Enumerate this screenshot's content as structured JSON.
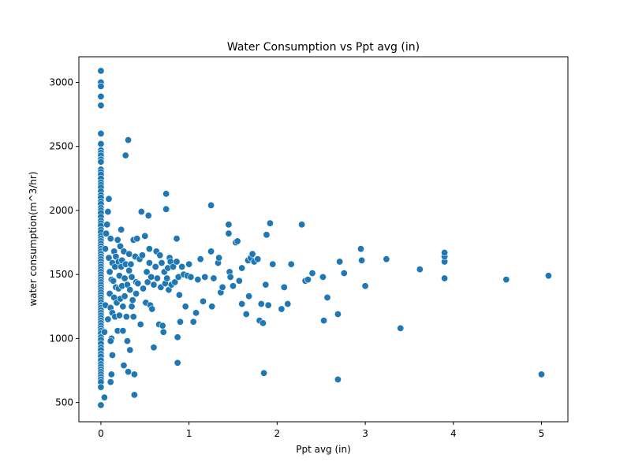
{
  "chart_data": {
    "type": "scatter",
    "title": "Water Consumption vs Ppt avg (in)",
    "xlabel": "Ppt avg (in)",
    "ylabel": "water consumption(m^3/hr)",
    "xlim": [
      -0.25,
      5.3
    ],
    "ylim": [
      350,
      3200
    ],
    "xticks": [
      0,
      1,
      2,
      3,
      4,
      5
    ],
    "xtick_labels": [
      "0",
      "1",
      "2",
      "3",
      "4",
      "5"
    ],
    "yticks": [
      500,
      1000,
      1500,
      2000,
      2500,
      3000
    ],
    "ytick_labels": [
      "500",
      "1000",
      "1500",
      "2000",
      "2500",
      "3000"
    ],
    "grid": false,
    "legend": "none",
    "marker_color": "#1f77b4",
    "series": [
      {
        "points": [
          [
            0,
            3090
          ],
          [
            0,
            3000
          ],
          [
            0,
            2970
          ],
          [
            0,
            2890
          ],
          [
            0,
            2820
          ],
          [
            0,
            2600
          ],
          [
            0,
            2520
          ],
          [
            0,
            2470
          ],
          [
            0,
            2450
          ],
          [
            0,
            2430
          ],
          [
            0,
            2400
          ],
          [
            0,
            2380
          ],
          [
            0,
            2320
          ],
          [
            0,
            2300
          ],
          [
            0,
            2280
          ],
          [
            0,
            2250
          ],
          [
            0,
            2220
          ],
          [
            0,
            2200
          ],
          [
            0,
            2180
          ],
          [
            0,
            2150
          ],
          [
            0,
            2120
          ],
          [
            0,
            2100
          ],
          [
            0,
            2070
          ],
          [
            0,
            2050
          ],
          [
            0,
            2020
          ],
          [
            0,
            2000
          ],
          [
            0,
            1980
          ],
          [
            0,
            1950
          ],
          [
            0,
            1920
          ],
          [
            0,
            1900
          ],
          [
            0,
            1880
          ],
          [
            0,
            1850
          ],
          [
            0,
            1830
          ],
          [
            0,
            1800
          ],
          [
            0,
            1780
          ],
          [
            0,
            1760
          ],
          [
            0,
            1740
          ],
          [
            0,
            1720
          ],
          [
            0,
            1700
          ],
          [
            0,
            1680
          ],
          [
            0,
            1660
          ],
          [
            0,
            1640
          ],
          [
            0,
            1620
          ],
          [
            0,
            1600
          ],
          [
            0,
            1580
          ],
          [
            0,
            1560
          ],
          [
            0,
            1540
          ],
          [
            0,
            1520
          ],
          [
            0,
            1500
          ],
          [
            0,
            1480
          ],
          [
            0,
            1460
          ],
          [
            0,
            1440
          ],
          [
            0,
            1420
          ],
          [
            0,
            1400
          ],
          [
            0,
            1380
          ],
          [
            0,
            1360
          ],
          [
            0,
            1340
          ],
          [
            0,
            1320
          ],
          [
            0,
            1300
          ],
          [
            0,
            1280
          ],
          [
            0,
            1260
          ],
          [
            0,
            1240
          ],
          [
            0,
            1220
          ],
          [
            0,
            1200
          ],
          [
            0,
            1180
          ],
          [
            0,
            1160
          ],
          [
            0,
            1140
          ],
          [
            0,
            1120
          ],
          [
            0,
            1100
          ],
          [
            0,
            1080
          ],
          [
            0,
            1060
          ],
          [
            0,
            1040
          ],
          [
            0,
            1010
          ],
          [
            0,
            990
          ],
          [
            0,
            960
          ],
          [
            0,
            930
          ],
          [
            0,
            910
          ],
          [
            0,
            880
          ],
          [
            0,
            860
          ],
          [
            0,
            830
          ],
          [
            0,
            800
          ],
          [
            0,
            780
          ],
          [
            0,
            760
          ],
          [
            0,
            740
          ],
          [
            0,
            720
          ],
          [
            0,
            700
          ],
          [
            0,
            680
          ],
          [
            0,
            660
          ],
          [
            0,
            620
          ],
          [
            0,
            480
          ],
          [
            0.04,
            540
          ],
          [
            0.04,
            1050
          ],
          [
            0.05,
            1260
          ],
          [
            0.05,
            1700
          ],
          [
            0.06,
            1820
          ],
          [
            0.07,
            1890
          ],
          [
            0.08,
            1990
          ],
          [
            0.08,
            1150
          ],
          [
            0.09,
            2090
          ],
          [
            0.09,
            1630
          ],
          [
            0.1,
            1350
          ],
          [
            0.1,
            1520
          ],
          [
            0.11,
            1240
          ],
          [
            0.11,
            1780
          ],
          [
            0.12,
            720
          ],
          [
            0.12,
            1000
          ],
          [
            0.12,
            1460
          ],
          [
            0.13,
            870
          ],
          [
            0.13,
            1590
          ],
          [
            0.13,
            1200
          ],
          [
            0.11,
            660
          ],
          [
            0.11,
            980
          ],
          [
            0.14,
            1450
          ],
          [
            0.15,
            1680
          ],
          [
            0.15,
            1320
          ],
          [
            0.16,
            1170
          ],
          [
            0.16,
            1560
          ],
          [
            0.17,
            1400
          ],
          [
            0.17,
            1640
          ],
          [
            0.18,
            1280
          ],
          [
            0.19,
            1060
          ],
          [
            0.19,
            1770
          ],
          [
            0.2,
            1600
          ],
          [
            0.2,
            1390
          ],
          [
            0.21,
            1490
          ],
          [
            0.21,
            1180
          ],
          [
            0.22,
            1720
          ],
          [
            0.22,
            1310
          ],
          [
            0.23,
            1560
          ],
          [
            0.23,
            1850
          ],
          [
            0.24,
            1410
          ],
          [
            0.24,
            1610
          ],
          [
            0.25,
            1060
          ],
          [
            0.25,
            1250
          ],
          [
            0.26,
            790
          ],
          [
            0.26,
            1680
          ],
          [
            0.27,
            1470
          ],
          [
            0.27,
            1330
          ],
          [
            0.28,
            2430
          ],
          [
            0.28,
            1580
          ],
          [
            0.29,
            1170
          ],
          [
            0.3,
            980
          ],
          [
            0.3,
            1420
          ],
          [
            0.31,
            740
          ],
          [
            0.31,
            2550
          ],
          [
            0.32,
            1660
          ],
          [
            0.32,
            1530
          ],
          [
            0.33,
            1380
          ],
          [
            0.33,
            910
          ],
          [
            0.34,
            1580
          ],
          [
            0.35,
            1250
          ],
          [
            0.35,
            1480
          ],
          [
            0.36,
            1300
          ],
          [
            0.37,
            1170
          ],
          [
            0.37,
            1770
          ],
          [
            0.38,
            720
          ],
          [
            0.38,
            560
          ],
          [
            0.39,
            1640
          ],
          [
            0.4,
            1440
          ],
          [
            0.4,
            1350
          ],
          [
            0.41,
            1780
          ],
          [
            0.42,
            1430
          ],
          [
            0.44,
            1620
          ],
          [
            0.45,
            1110
          ],
          [
            0.46,
            1990
          ],
          [
            0.47,
            1650
          ],
          [
            0.48,
            1390
          ],
          [
            0.5,
            1800
          ],
          [
            0.51,
            1280
          ],
          [
            0.52,
            1520
          ],
          [
            0.53,
            1440
          ],
          [
            0.54,
            1960
          ],
          [
            0.55,
            1700
          ],
          [
            0.55,
            1590
          ],
          [
            0.56,
            1260
          ],
          [
            0.57,
            1480
          ],
          [
            0.58,
            1230
          ],
          [
            0.6,
            930
          ],
          [
            0.6,
            1420
          ],
          [
            0.62,
            1560
          ],
          [
            0.63,
            1680
          ],
          [
            0.64,
            1470
          ],
          [
            0.66,
            1110
          ],
          [
            0.67,
            1650
          ],
          [
            0.68,
            1400
          ],
          [
            0.69,
            1590
          ],
          [
            0.7,
            1100
          ],
          [
            0.71,
            1050
          ],
          [
            0.72,
            1520
          ],
          [
            0.73,
            1430
          ],
          [
            0.74,
            2130
          ],
          [
            0.74,
            2010
          ],
          [
            0.75,
            1470
          ],
          [
            0.76,
            1550
          ],
          [
            0.77,
            1380
          ],
          [
            0.78,
            1630
          ],
          [
            0.79,
            1600
          ],
          [
            0.8,
            1420
          ],
          [
            0.82,
            1560
          ],
          [
            0.84,
            1440
          ],
          [
            0.86,
            1780
          ],
          [
            0.86,
            1600
          ],
          [
            0.87,
            810
          ],
          [
            0.87,
            1010
          ],
          [
            0.88,
            1480
          ],
          [
            0.89,
            1340
          ],
          [
            0.9,
            1130
          ],
          [
            0.92,
            1560
          ],
          [
            0.94,
            1500
          ],
          [
            0.96,
            1250
          ],
          [
            0.98,
            1490
          ],
          [
            1.0,
            1580
          ],
          [
            1.02,
            1480
          ],
          [
            1.05,
            1130
          ],
          [
            1.08,
            1200
          ],
          [
            1.1,
            1460
          ],
          [
            1.13,
            1620
          ],
          [
            1.16,
            1290
          ],
          [
            1.18,
            1480
          ],
          [
            1.25,
            2040
          ],
          [
            1.25,
            1680
          ],
          [
            1.26,
            1250
          ],
          [
            1.28,
            1470
          ],
          [
            1.33,
            1590
          ],
          [
            1.34,
            1630
          ],
          [
            1.36,
            1360
          ],
          [
            1.38,
            1400
          ],
          [
            1.45,
            1820
          ],
          [
            1.45,
            1890
          ],
          [
            1.46,
            1520
          ],
          [
            1.47,
            1480
          ],
          [
            1.5,
            1410
          ],
          [
            1.53,
            1750
          ],
          [
            1.55,
            1760
          ],
          [
            1.57,
            1450
          ],
          [
            1.6,
            1550
          ],
          [
            1.6,
            1270
          ],
          [
            1.65,
            1190
          ],
          [
            1.67,
            1610
          ],
          [
            1.68,
            1330
          ],
          [
            1.7,
            1630
          ],
          [
            1.72,
            1660
          ],
          [
            1.74,
            1600
          ],
          [
            1.78,
            1620
          ],
          [
            1.8,
            1140
          ],
          [
            1.82,
            1270
          ],
          [
            1.84,
            1120
          ],
          [
            1.85,
            730
          ],
          [
            1.87,
            1420
          ],
          [
            1.88,
            1810
          ],
          [
            1.9,
            1260
          ],
          [
            1.92,
            1900
          ],
          [
            1.95,
            1580
          ],
          [
            2.05,
            1230
          ],
          [
            2.08,
            1400
          ],
          [
            2.12,
            1270
          ],
          [
            2.16,
            1580
          ],
          [
            2.28,
            1890
          ],
          [
            2.32,
            1450
          ],
          [
            2.35,
            1460
          ],
          [
            2.4,
            1510
          ],
          [
            2.52,
            1480
          ],
          [
            2.53,
            1140
          ],
          [
            2.57,
            1320
          ],
          [
            2.69,
            680
          ],
          [
            2.69,
            1190
          ],
          [
            2.71,
            1600
          ],
          [
            2.76,
            1510
          ],
          [
            2.95,
            1700
          ],
          [
            2.96,
            1610
          ],
          [
            3.0,
            1410
          ],
          [
            3.24,
            1620
          ],
          [
            3.4,
            1080
          ],
          [
            3.62,
            1540
          ],
          [
            3.9,
            1470
          ],
          [
            3.9,
            1600
          ],
          [
            3.9,
            1640
          ],
          [
            3.9,
            1670
          ],
          [
            4.6,
            1460
          ],
          [
            5.0,
            720
          ],
          [
            5.08,
            1490
          ]
        ]
      }
    ]
  }
}
